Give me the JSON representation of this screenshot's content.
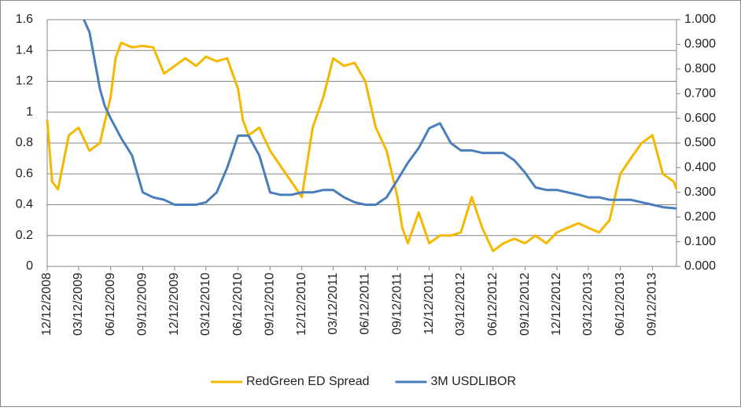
{
  "chart_data": {
    "type": "line",
    "xlim": [
      "12/12/2008",
      "11/20/2013"
    ],
    "xticks": [
      "12/12/2008",
      "03/12/2009",
      "06/12/2009",
      "09/12/2009",
      "12/12/2009",
      "03/12/2010",
      "06/12/2010",
      "09/12/2010",
      "12/12/2010",
      "03/12/2011",
      "06/12/2011",
      "09/12/2011",
      "12/12/2011",
      "03/12/2012",
      "06/12/2012",
      "09/12/2012",
      "12/12/2012",
      "03/12/2013",
      "06/12/2013",
      "09/12/2013"
    ],
    "ylim": [
      0,
      1.6
    ],
    "yticks": [
      0,
      0.2,
      0.4,
      0.6,
      0.8,
      1,
      1.2,
      1.4,
      1.6
    ],
    "y2lim": [
      0,
      1
    ],
    "y2ticks": [
      {
        "value": 0,
        "label": "0.000"
      },
      {
        "value": 0.1,
        "label": "0.100"
      },
      {
        "value": 0.2,
        "label": "0.200"
      },
      {
        "value": 0.3,
        "label": "0.300"
      },
      {
        "value": 0.4,
        "label": "0.400"
      },
      {
        "value": 0.5,
        "label": "0.500"
      },
      {
        "value": 0.6,
        "label": "0.600"
      },
      {
        "value": 0.7,
        "label": "0.700"
      },
      {
        "value": 0.8,
        "label": "0.800"
      },
      {
        "value": 0.9,
        "label": "0.900"
      },
      {
        "value": 1,
        "label": "1.000"
      }
    ],
    "grid": true,
    "legend": "bottom",
    "series": [
      {
        "name": "RedGreen ED Spread",
        "color": "#f5b800",
        "x": [
          "12/12/2008",
          "12/26/2008",
          "01/12/2009",
          "02/12/2009",
          "03/12/2009",
          "04/12/2009",
          "05/12/2009",
          "06/12/2009",
          "06/26/2009",
          "07/12/2009",
          "08/12/2009",
          "09/12/2009",
          "10/12/2009",
          "11/12/2009",
          "12/12/2009",
          "01/12/2010",
          "02/12/2010",
          "03/12/2010",
          "04/12/2010",
          "05/12/2010",
          "06/12/2010",
          "06/26/2010",
          "07/12/2010",
          "08/12/2010",
          "09/12/2010",
          "10/12/2010",
          "11/12/2010",
          "12/12/2010",
          "01/12/2011",
          "02/12/2011",
          "03/12/2011",
          "04/12/2011",
          "05/12/2011",
          "06/12/2011",
          "07/12/2011",
          "08/12/2011",
          "09/12/2011",
          "09/26/2011",
          "10/12/2011",
          "11/12/2011",
          "12/12/2011",
          "01/12/2012",
          "02/12/2012",
          "03/12/2012",
          "04/12/2012",
          "05/12/2012",
          "06/12/2012",
          "07/12/2012",
          "08/12/2012",
          "09/12/2012",
          "10/12/2012",
          "11/12/2012",
          "12/12/2012",
          "01/12/2013",
          "02/12/2013",
          "03/12/2013",
          "04/12/2013",
          "05/12/2013",
          "06/12/2013",
          "07/12/2013",
          "08/12/2013",
          "09/12/2013",
          "10/12/2013",
          "11/12/2013",
          "11/20/2013"
        ],
        "values": [
          0.95,
          0.55,
          0.5,
          0.85,
          0.9,
          0.75,
          0.8,
          1.1,
          1.35,
          1.45,
          1.42,
          1.43,
          1.42,
          1.25,
          1.3,
          1.35,
          1.3,
          1.36,
          1.33,
          1.35,
          1.15,
          0.95,
          0.85,
          0.9,
          0.75,
          0.65,
          0.55,
          0.45,
          0.9,
          1.1,
          1.35,
          1.3,
          1.32,
          1.2,
          0.9,
          0.75,
          0.45,
          0.25,
          0.15,
          0.35,
          0.15,
          0.2,
          0.2,
          0.22,
          0.45,
          0.25,
          0.1,
          0.15,
          0.18,
          0.15,
          0.2,
          0.15,
          0.22,
          0.25,
          0.28,
          0.25,
          0.22,
          0.3,
          0.6,
          0.7,
          0.8,
          0.85,
          0.6,
          0.55,
          0.5
        ]
      },
      {
        "name": "3M USDLIBOR",
        "color": "#4a7ebb",
        "axis": "y2",
        "x": [
          "03/27/2009",
          "04/12/2009",
          "05/12/2009",
          "05/26/2009",
          "06/12/2009",
          "07/12/2009",
          "08/12/2009",
          "09/12/2009",
          "10/12/2009",
          "11/12/2009",
          "12/12/2009",
          "01/12/2010",
          "02/12/2010",
          "03/12/2010",
          "04/12/2010",
          "05/12/2010",
          "06/12/2010",
          "07/12/2010",
          "08/12/2010",
          "09/12/2010",
          "10/12/2010",
          "11/12/2010",
          "12/12/2010",
          "01/12/2011",
          "02/12/2011",
          "03/12/2011",
          "04/12/2011",
          "05/12/2011",
          "06/12/2011",
          "07/12/2011",
          "08/12/2011",
          "09/12/2011",
          "10/12/2011",
          "11/12/2011",
          "12/12/2011",
          "01/12/2012",
          "02/12/2012",
          "03/12/2012",
          "04/12/2012",
          "05/12/2012",
          "06/12/2012",
          "07/12/2012",
          "08/12/2012",
          "09/12/2012",
          "10/12/2012",
          "11/12/2012",
          "12/12/2012",
          "01/12/2013",
          "02/12/2013",
          "03/12/2013",
          "04/12/2013",
          "05/12/2013",
          "06/12/2013",
          "07/12/2013",
          "08/12/2013",
          "09/12/2013",
          "10/12/2013",
          "11/20/2013"
        ],
        "values": [
          1,
          0.95,
          0.72,
          0.65,
          0.6,
          0.52,
          0.45,
          0.3,
          0.28,
          0.27,
          0.25,
          0.25,
          0.25,
          0.26,
          0.3,
          0.4,
          0.53,
          0.53,
          0.45,
          0.3,
          0.29,
          0.29,
          0.3,
          0.3,
          0.31,
          0.31,
          0.28,
          0.26,
          0.25,
          0.25,
          0.28,
          0.35,
          0.42,
          0.48,
          0.56,
          0.58,
          0.5,
          0.47,
          0.47,
          0.46,
          0.46,
          0.46,
          0.43,
          0.38,
          0.32,
          0.31,
          0.31,
          0.3,
          0.29,
          0.28,
          0.28,
          0.27,
          0.27,
          0.27,
          0.26,
          0.25,
          0.24,
          0.235
        ]
      }
    ]
  }
}
